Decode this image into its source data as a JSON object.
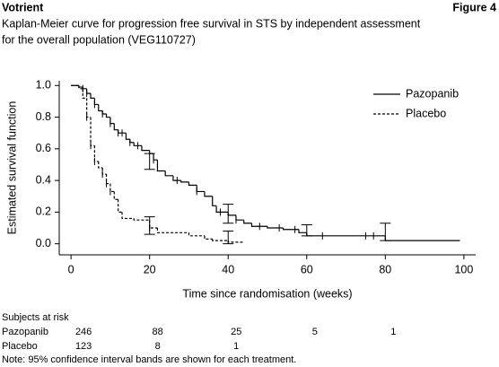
{
  "header": {
    "product": "Votrient",
    "figure": "Figure 4"
  },
  "chart_data": {
    "type": "km",
    "title": "Kaplan-Meier curve for progression free survival in STS by independent assessment",
    "subtitle": "for the overall population (VEG110727)",
    "x_label": "Time since randomisation (weeks)",
    "y_label": "Estimated survival function",
    "xlim": [
      -3,
      103
    ],
    "ylim": [
      -0.07,
      1.03
    ],
    "xticks": [
      0,
      20,
      40,
      60,
      80,
      100
    ],
    "yticks": [
      {
        "value": 0,
        "label": "0.0"
      },
      {
        "value": 0.2,
        "label": "0.2"
      },
      {
        "value": 0.4,
        "label": "0.4"
      },
      {
        "value": 0.6,
        "label": "0.6"
      },
      {
        "value": 0.8,
        "label": "0.8"
      },
      {
        "value": 1,
        "label": "1.0"
      }
    ],
    "legend": "upper right",
    "series": [
      {
        "name": "Pazopanib",
        "color": "#000000",
        "line_style": "solid",
        "x": [
          0,
          2,
          3,
          4,
          5,
          6,
          7,
          8,
          9,
          10,
          11,
          12,
          14,
          15,
          16,
          18,
          20,
          21,
          22,
          24,
          26,
          28,
          30,
          32,
          34,
          36,
          37,
          40,
          42,
          44,
          46,
          50,
          54,
          58,
          60,
          80,
          99
        ],
        "values": [
          1.0,
          0.99,
          0.98,
          0.95,
          0.92,
          0.88,
          0.84,
          0.82,
          0.8,
          0.76,
          0.72,
          0.7,
          0.66,
          0.64,
          0.62,
          0.59,
          0.57,
          0.53,
          0.46,
          0.43,
          0.4,
          0.39,
          0.37,
          0.33,
          0.3,
          0.24,
          0.2,
          0.18,
          0.15,
          0.13,
          0.11,
          0.1,
          0.09,
          0.07,
          0.05,
          0.02,
          0.02
        ],
        "censored": [
          3,
          4,
          6,
          8,
          10,
          12,
          13,
          15,
          17,
          21,
          27,
          32,
          38,
          42,
          48,
          53,
          57,
          64,
          75,
          77
        ],
        "ci": [
          {
            "x": 20,
            "lower": 0.47,
            "upper": 0.57
          },
          {
            "x": 40,
            "lower": 0.13,
            "upper": 0.25
          },
          {
            "x": 60,
            "lower": 0.05,
            "upper": 0.12
          },
          {
            "x": 80,
            "lower": 0.02,
            "upper": 0.13
          }
        ]
      },
      {
        "name": "Placebo",
        "color": "#000000",
        "line_style": "dashed",
        "x": [
          0,
          2,
          3,
          4,
          5,
          6,
          7,
          8,
          9,
          10,
          11,
          12,
          13,
          16,
          20,
          22,
          30,
          34,
          36,
          40,
          44
        ],
        "values": [
          1.0,
          0.98,
          0.92,
          0.8,
          0.62,
          0.52,
          0.48,
          0.44,
          0.38,
          0.33,
          0.28,
          0.2,
          0.16,
          0.15,
          0.1,
          0.07,
          0.05,
          0.03,
          0.02,
          0.01,
          0.01
        ],
        "censored": [
          4,
          5,
          6,
          8,
          9,
          10,
          20
        ],
        "ci": [
          {
            "x": 20,
            "lower": 0.06,
            "upper": 0.17
          },
          {
            "x": 40,
            "lower": 0.0,
            "upper": 0.08
          }
        ]
      }
    ],
    "risk_table": {
      "title": "Subjects at risk",
      "rows": [
        {
          "name": "Pazopanib",
          "counts": [
            246,
            88,
            25,
            5,
            1
          ]
        },
        {
          "name": "Placebo",
          "counts": [
            123,
            8,
            1,
            null,
            null
          ]
        }
      ]
    }
  },
  "note": "Note: 95% confidence interval bands are shown for each treatment."
}
